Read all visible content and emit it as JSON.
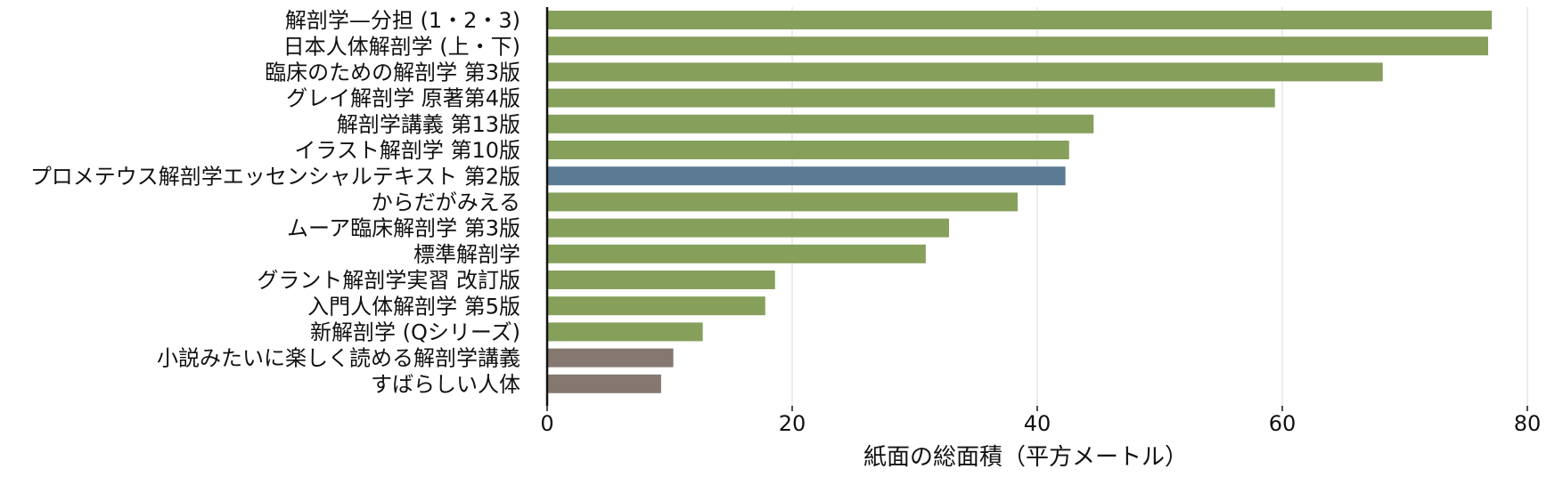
{
  "chart_data": {
    "type": "bar",
    "orientation": "horizontal",
    "title": "",
    "xlabel": "紙面の総面積（平方メートル）",
    "ylabel": "",
    "xlim": [
      0,
      80
    ],
    "xticks": [
      0,
      20,
      40,
      60,
      80
    ],
    "grid": "vertical",
    "legend": "none",
    "categories": [
      "解剖学—分担 (1・2・3)",
      "日本人体解剖学 (上・下)",
      "臨床のための解剖学 第3版",
      "グレイ解剖学 原著第4版",
      "解剖学講義 第13版",
      "イラスト解剖学 第10版",
      "プロメテウス解剖学エッセンシャルテキスト 第2版",
      "からだがみえる",
      "ムーア臨床解剖学 第3版",
      "標準解剖学",
      "グラント解剖学実習 改訂版",
      "入門人体解剖学 第5版",
      "新解剖学 (Qシリーズ)",
      "小説みたいに楽しく読める解剖学講義",
      "すばらしい人体"
    ],
    "values": [
      77.1,
      76.8,
      68.2,
      59.4,
      44.6,
      42.6,
      42.3,
      38.4,
      32.8,
      30.9,
      18.6,
      17.8,
      12.7,
      10.3,
      9.3
    ],
    "colors": [
      "#86a05c",
      "#86a05c",
      "#86a05c",
      "#86a05c",
      "#86a05c",
      "#86a05c",
      "#5b7a94",
      "#86a05c",
      "#86a05c",
      "#86a05c",
      "#86a05c",
      "#86a05c",
      "#86a05c",
      "#847870",
      "#847870"
    ],
    "grid_color": "#d9d9d9",
    "axis_color": "#111111"
  }
}
